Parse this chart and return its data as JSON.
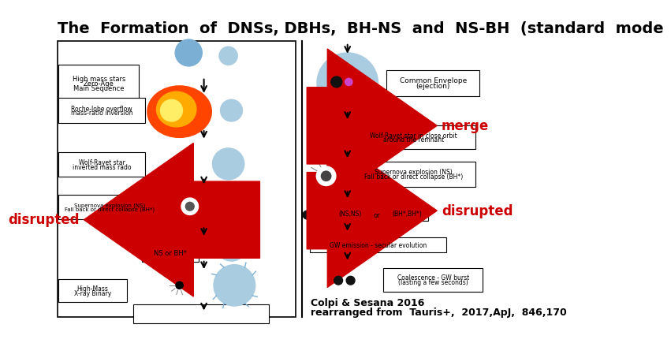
{
  "title": "The  Formation  of  DNSs, DBHs,  BH-NS  and  NS-BH  (standard  mode",
  "title_fontsize": 14,
  "bg_color": "#ffffff",
  "citation_line1": "Colpi & Sesana 2016",
  "citation_line2": "rearranged from  Tauris+,  2017,ApJ,  846,170",
  "arrow_color": "#cc0000",
  "arrow_text_color": "#cc0000",
  "arrow_fontsize": 12
}
